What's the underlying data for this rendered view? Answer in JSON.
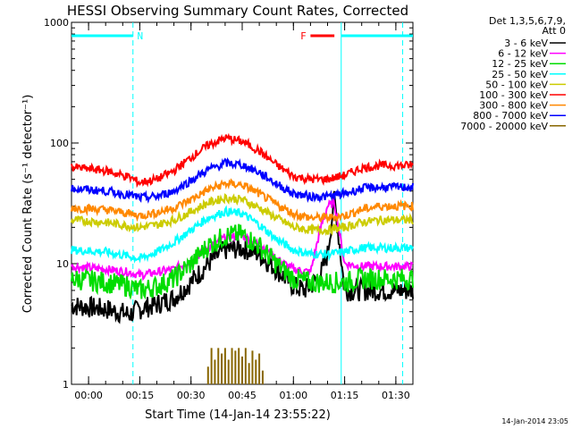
{
  "chart_data": {
    "type": "line",
    "title": "HESSI Observing Summary Count Rates, Corrected",
    "xlabel": "Start Time (14-Jan-14 23:55:22)",
    "ylabel": "Corrected Count Rate (s⁻¹ detector⁻¹)",
    "y_scale": "log",
    "ylim": [
      1,
      1000
    ],
    "xlim": [
      -5,
      95
    ],
    "x_units": "minutes after 00:00",
    "x_ticks": [
      {
        "value": 0,
        "label": "00:00"
      },
      {
        "value": 15,
        "label": "00:15"
      },
      {
        "value": 30,
        "label": "00:30"
      },
      {
        "value": 45,
        "label": "00:45"
      },
      {
        "value": 60,
        "label": "01:00"
      },
      {
        "value": 75,
        "label": "01:15"
      },
      {
        "value": 90,
        "label": "01:30"
      }
    ],
    "y_ticks": [
      {
        "value": 1,
        "label": "1"
      },
      {
        "value": 10,
        "label": "10"
      },
      {
        "value": 100,
        "label": "100"
      },
      {
        "value": 1000,
        "label": "1000"
      }
    ],
    "legend_header": [
      "Det 1,3,5,6,7,9,",
      "Att 0"
    ],
    "legend_placement": "right",
    "timestamp": "14-Jan-2014 23:05",
    "series": [
      {
        "name": "3 - 6 keV",
        "color": "#000000",
        "x": [
          -5,
          5,
          12,
          15,
          20,
          25,
          30,
          35,
          40,
          45,
          50,
          55,
          60,
          63,
          65,
          68,
          70,
          72,
          75,
          80,
          85,
          90,
          95
        ],
        "values": [
          4.5,
          4.2,
          3.8,
          4.2,
          4.6,
          5.2,
          7,
          10,
          13,
          13.5,
          12,
          9,
          6.5,
          6,
          6.5,
          8,
          12,
          35,
          6,
          6,
          6,
          6,
          6
        ]
      },
      {
        "name": "6 - 12 keV",
        "color": "#ff00ff",
        "x": [
          -5,
          5,
          12,
          15,
          20,
          25,
          30,
          35,
          40,
          45,
          50,
          55,
          60,
          65,
          68,
          70,
          72,
          75,
          80,
          85,
          90,
          95
        ],
        "values": [
          9.5,
          9,
          8.5,
          8,
          8.5,
          9,
          10.5,
          13.5,
          16.5,
          17,
          14.5,
          11,
          9,
          8.5,
          20,
          30,
          32,
          10,
          9.5,
          9.5,
          9.5,
          9.5
        ]
      },
      {
        "name": "12 - 25 keV",
        "color": "#00dd00",
        "x": [
          -5,
          5,
          12,
          15,
          20,
          25,
          30,
          35,
          40,
          45,
          50,
          55,
          60,
          65,
          70,
          75,
          80,
          85,
          90,
          95
        ],
        "values": [
          7.5,
          7,
          6.5,
          6,
          6.5,
          7.5,
          10,
          14,
          17,
          17.5,
          14,
          10,
          7.5,
          7,
          7,
          7,
          7.5,
          7.5,
          7.5,
          7.5
        ]
      },
      {
        "name": "25 - 50 keV",
        "color": "#00ffff",
        "x": [
          -5,
          5,
          12,
          15,
          20,
          25,
          30,
          35,
          40,
          45,
          50,
          55,
          60,
          65,
          70,
          75,
          80,
          85,
          90,
          95
        ],
        "values": [
          13,
          12.5,
          11.5,
          11,
          12.5,
          15,
          19,
          24,
          27,
          26,
          21,
          16,
          13,
          12,
          12,
          12.5,
          13.5,
          13.5,
          13.5,
          13.5
        ]
      },
      {
        "name": "50 - 100 keV",
        "color": "#cccc00",
        "x": [
          -5,
          5,
          12,
          15,
          20,
          25,
          30,
          35,
          40,
          45,
          50,
          55,
          60,
          65,
          70,
          75,
          80,
          85,
          90,
          95
        ],
        "values": [
          23,
          22,
          20.5,
          20,
          21,
          23,
          27,
          32,
          35,
          34,
          29,
          24,
          20,
          19,
          19,
          20,
          22,
          23,
          23,
          23
        ]
      },
      {
        "name": "100 - 300 keV",
        "color": "#ff0000",
        "x": [
          -5,
          5,
          12,
          15,
          20,
          25,
          30,
          35,
          40,
          45,
          50,
          55,
          60,
          65,
          70,
          75,
          80,
          85,
          90,
          95
        ],
        "values": [
          63,
          59,
          52,
          47,
          50,
          59,
          76,
          96,
          110,
          103,
          86,
          66,
          53,
          50,
          50,
          54,
          62,
          65,
          65,
          65
        ]
      },
      {
        "name": "300 - 800 keV",
        "color": "#ff8800",
        "x": [
          -5,
          5,
          12,
          15,
          20,
          25,
          30,
          35,
          40,
          45,
          50,
          55,
          60,
          65,
          70,
          75,
          80,
          85,
          90,
          95
        ],
        "values": [
          29,
          28,
          26,
          25,
          26.5,
          29,
          34,
          41,
          46,
          45,
          38,
          31,
          26,
          24,
          24,
          25,
          28,
          30,
          30,
          30
        ]
      },
      {
        "name": "800 - 7000 keV",
        "color": "#0000ff",
        "x": [
          -5,
          5,
          12,
          15,
          20,
          25,
          30,
          35,
          40,
          45,
          50,
          55,
          60,
          65,
          70,
          75,
          80,
          85,
          90,
          95
        ],
        "values": [
          42,
          40,
          37,
          35,
          36,
          40,
          49,
          60,
          68,
          66,
          57,
          46,
          38,
          36,
          36,
          38,
          42,
          43,
          43,
          43
        ]
      },
      {
        "name": "7000 - 20000 keV",
        "color": "#886600",
        "x": [
          35,
          36,
          37,
          38,
          39,
          40,
          41,
          42,
          43,
          44,
          45,
          46,
          47,
          48,
          49,
          50,
          51
        ],
        "values": [
          1.4,
          2.0,
          1.6,
          2.0,
          1.8,
          2.0,
          1.6,
          2.0,
          1.9,
          2.0,
          1.7,
          2.0,
          1.5,
          1.9,
          1.6,
          1.8,
          1.3
        ]
      }
    ],
    "annotations": [
      {
        "label": "N",
        "kind": "night",
        "x_start": -5,
        "x_end": 13,
        "color": "#00ffff"
      },
      {
        "label": "F",
        "kind": "flare",
        "x_start": 65,
        "x_end": 72,
        "color": "#ff0000"
      },
      {
        "label": "",
        "kind": "night",
        "x_start": 74,
        "x_end": 95,
        "color": "#00ffff"
      }
    ],
    "vlines": [
      {
        "x": 13,
        "style": "dashed"
      },
      {
        "x": 74,
        "style": "solid"
      },
      {
        "x": 92,
        "style": "dashed"
      }
    ]
  }
}
